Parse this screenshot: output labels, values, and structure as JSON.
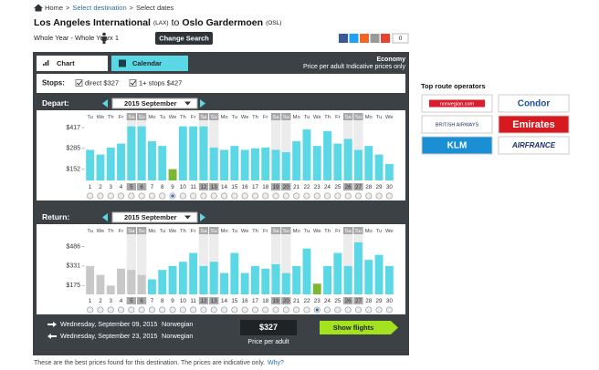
{
  "breadcrumb": [
    "Home",
    ">",
    "Select destination",
    ">",
    "Select dates"
  ],
  "route": {
    "origin": "Los Angeles International",
    "origin_code": "(LAX)",
    "connector": "to",
    "destination": "Oslo Gardermoen",
    "destination_code": "(OSL)"
  },
  "search": {
    "period": "Whole Year - Whole Year",
    "travelers": "x 1",
    "button": "Change Search"
  },
  "share_count": "0",
  "tabs": [
    "Chart",
    "Calendar"
  ],
  "cabin": "Economy",
  "price_note": "Price per adult Indicative prices only",
  "stops": {
    "label": "Stops:",
    "options": [
      "direct $327",
      "1+ stops $427"
    ]
  },
  "calendar": {
    "weekdays": [
      "Tu",
      "We",
      "Th",
      "Fr",
      "Sa",
      "Su",
      "Mo",
      "Tu",
      "We",
      "Th",
      "Fr",
      "Sa",
      "Su",
      "Mo",
      "Tu",
      "We",
      "Th",
      "Fr",
      "Sa",
      "Su",
      "Mo",
      "Tu",
      "We",
      "Th",
      "Fr",
      "Sa",
      "Su",
      "Mo",
      "Tu",
      "We"
    ],
    "days": [
      1,
      2,
      3,
      4,
      5,
      6,
      7,
      8,
      9,
      10,
      11,
      12,
      13,
      14,
      15,
      16,
      17,
      18,
      19,
      20,
      21,
      22,
      23,
      24,
      25,
      26,
      27,
      28,
      29,
      30
    ]
  },
  "charts": [
    {
      "type": "bar",
      "label": "Depart:",
      "month": "2015 September",
      "values": [
        275,
        245,
        290,
        315,
        425,
        425,
        330,
        300,
        152,
        425,
        425,
        425,
        290,
        275,
        300,
        275,
        285,
        290,
        275,
        260,
        330,
        405,
        300,
        395,
        315,
        345,
        275,
        300,
        245,
        185
      ],
      "ylim": [
        80,
        452
      ],
      "yticks": [
        {
          "value": 152,
          "label": "$152"
        },
        {
          "value": 285,
          "label": "$285"
        },
        {
          "value": 417,
          "label": "$417"
        }
      ],
      "color": "#5ad8e6",
      "selected_index": 8,
      "selected_color": "#7cb82f",
      "unavailable": [],
      "unavailable_color": "#c8c8c8"
    },
    {
      "type": "bar",
      "label": "Return:",
      "month": "2015 September",
      "values": [
        331,
        260,
        175,
        310,
        300,
        260,
        225,
        300,
        331,
        365,
        435,
        331,
        365,
        275,
        435,
        275,
        331,
        310,
        345,
        275,
        331,
        470,
        190,
        331,
        435,
        331,
        520,
        380,
        420,
        331
      ],
      "ylim": [
        105,
        570
      ],
      "yticks": [
        {
          "value": 175,
          "label": "$175"
        },
        {
          "value": 331,
          "label": "$331"
        },
        {
          "value": 486,
          "label": "$486"
        }
      ],
      "color": "#5ad8e6",
      "selected_index": 22,
      "selected_color": "#7cb82f",
      "unavailable": [
        0,
        1,
        2,
        3,
        4,
        5
      ],
      "unavailable_color": "#c8c8c8"
    }
  ],
  "summary": {
    "flights": [
      {
        "date": "Wednesday, September 09, 2015",
        "airline": "Norwegian"
      },
      {
        "date": "Wednesday, September 23, 2015",
        "airline": "Norwegian"
      }
    ],
    "price": "$327",
    "price_label": "Price per adult",
    "button": "Show flights"
  },
  "operators": {
    "title": "Top route operators",
    "names": [
      "norwegian.com",
      "Condor",
      "BRITISH AIRWAYS",
      "Emirates",
      "KLM",
      "AIRFRANCE"
    ]
  },
  "footer": {
    "text": "These are the best prices found for this destination. The prices are indicative only.",
    "link": "Why?"
  }
}
